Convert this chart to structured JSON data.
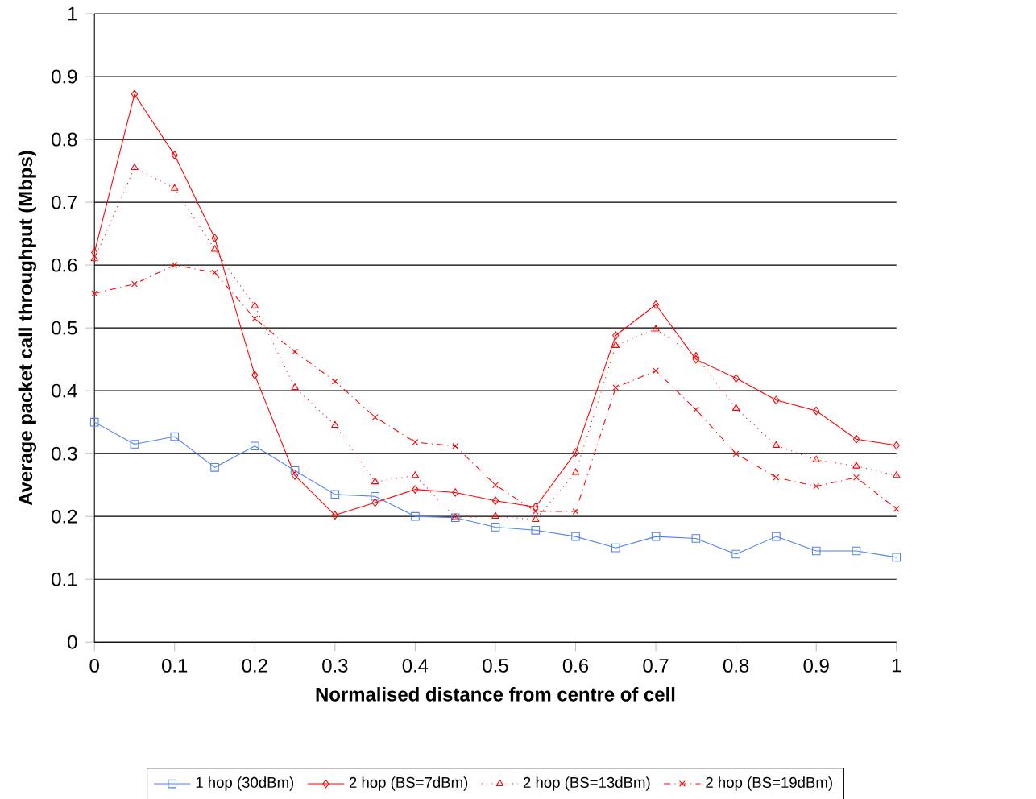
{
  "chart_data": {
    "type": "line",
    "xlabel": "Normalised distance from centre of cell",
    "ylabel": "Average packet call throughput (Mbps)",
    "x": [
      0,
      0.05,
      0.1,
      0.15,
      0.2,
      0.25,
      0.3,
      0.35,
      0.4,
      0.45,
      0.5,
      0.55,
      0.6,
      0.65,
      0.7,
      0.75,
      0.8,
      0.85,
      0.9,
      0.95,
      1
    ],
    "xlim": [
      0,
      1
    ],
    "xticks": [
      0,
      0.1,
      0.2,
      0.3,
      0.4,
      0.5,
      0.6,
      0.7,
      0.8,
      0.9,
      1
    ],
    "ylim": [
      0,
      1
    ],
    "yticks": [
      0,
      0.1,
      0.2,
      0.3,
      0.4,
      0.5,
      0.6,
      0.7,
      0.8,
      0.9,
      1
    ],
    "grid": "y",
    "legend": "bottom",
    "series": [
      {
        "name": "1 hop (30dBm)",
        "color": "#4f81f0",
        "marker": "square",
        "line_style": "solid",
        "values": [
          0.35,
          0.315,
          0.327,
          0.278,
          0.312,
          0.273,
          0.235,
          0.232,
          0.2,
          0.198,
          0.183,
          0.178,
          0.168,
          0.15,
          0.168,
          0.165,
          0.14,
          0.168,
          0.145,
          0.145,
          0.135
        ]
      },
      {
        "name": "2 hop (BS=7dBm)",
        "color": "#ff0000",
        "marker": "diamond",
        "line_style": "solid",
        "values": [
          0.62,
          0.872,
          0.775,
          0.643,
          0.425,
          0.265,
          0.202,
          0.222,
          0.243,
          0.238,
          0.225,
          0.215,
          0.302,
          0.488,
          0.537,
          0.45,
          0.42,
          0.385,
          0.368,
          0.323,
          0.313
        ]
      },
      {
        "name": "2 hop (BS=13dBm)",
        "color": "#ff0000",
        "marker": "triangle",
        "line_style": "dotted",
        "values": [
          0.61,
          0.755,
          0.722,
          0.625,
          0.535,
          0.405,
          0.345,
          0.255,
          0.265,
          0.198,
          0.2,
          0.195,
          0.27,
          0.472,
          0.498,
          0.455,
          0.372,
          0.313,
          0.29,
          0.28,
          0.265
        ]
      },
      {
        "name": "2 hop (BS=19dBm)",
        "color": "#ff0000",
        "marker": "cross",
        "line_style": "dashdot",
        "values": [
          0.555,
          0.57,
          0.6,
          0.588,
          0.515,
          0.462,
          0.415,
          0.358,
          0.318,
          0.312,
          0.25,
          0.208,
          0.208,
          0.405,
          0.432,
          0.37,
          0.3,
          0.262,
          0.248,
          0.262,
          0.212
        ]
      }
    ]
  }
}
